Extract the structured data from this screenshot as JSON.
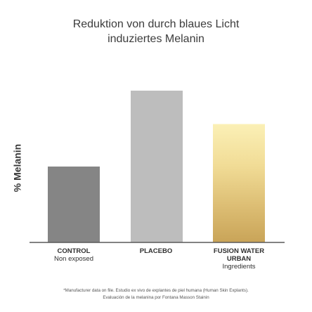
{
  "title_lines": [
    "Reduktion von durch blaues Licht",
    "induziertes Melanin"
  ],
  "footnote_lines": [
    "*Manufacturer data on file. Estudio ex vivo de explantes de piel humana (Human Skin Explants).",
    "Evaluación de la melanina por Fontana Masson Stainin"
  ],
  "chart_data": {
    "type": "bar",
    "title": "Reduktion von durch blaues Licht induziertes Melanin",
    "ylabel": "% Melanin",
    "xlabel": "",
    "ylim": [
      0,
      100
    ],
    "grid": false,
    "legend": "none",
    "categories": [
      {
        "main": "CONTROL",
        "sub": "Non exposed"
      },
      {
        "main": "PLACEBO",
        "sub": ""
      },
      {
        "main": "FUSION WATER URBAN",
        "sub": "Ingredients"
      }
    ],
    "values": [
      50,
      100,
      78
    ],
    "colors": [
      "#858585",
      "#bdbdbd",
      "gradient-gold"
    ]
  }
}
